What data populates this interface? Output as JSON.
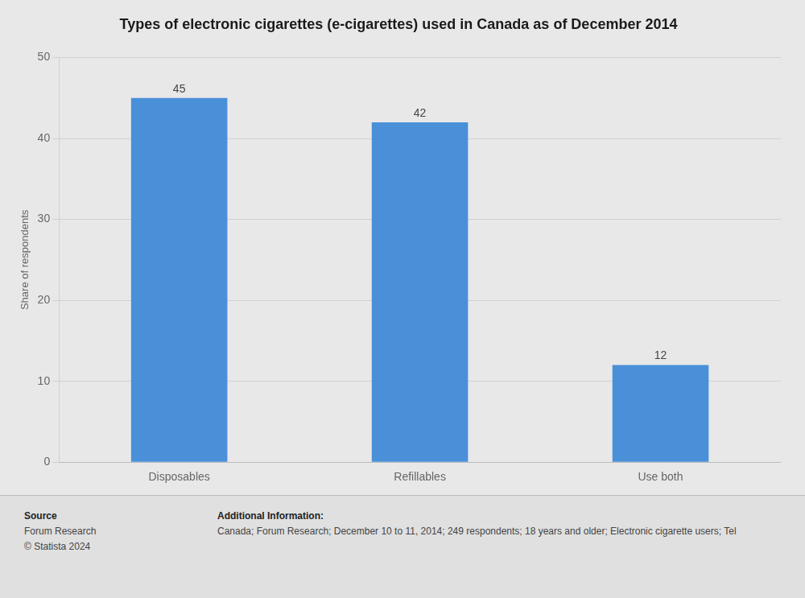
{
  "chart_data": {
    "type": "bar",
    "title": "Types of electronic cigarettes (e-cigarettes) used in Canada as of December 2014",
    "ylabel": "Share of respondents",
    "categories": [
      "Disposables",
      "Refillables",
      "Use both"
    ],
    "values": [
      45,
      42,
      12
    ],
    "color": "#4a90d9",
    "ylim": [
      0,
      50
    ],
    "yticks": [
      0,
      10,
      20,
      30,
      40,
      50
    ],
    "grid": true,
    "data_labels": true,
    "annotations": [
      "Source",
      "Forum Research",
      "© Statista 2024",
      "Additional Information:",
      "Canada; Forum Research; December 10 to 11, 2014; 249 respondents; 18 years and older; Electronic cigarette users; Tel"
    ]
  }
}
